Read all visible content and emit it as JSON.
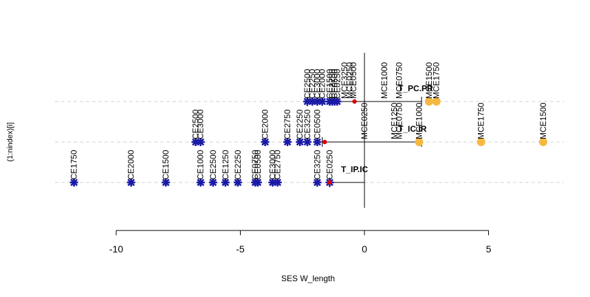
{
  "chart_data": {
    "type": "scatter",
    "xlabel": "SES W_length",
    "ylabel": "(1:nindex)[i]",
    "xlim": [
      -10,
      8
    ],
    "x_ticks": [
      -10,
      -5,
      0,
      5
    ],
    "x_tick_labels": [
      "-10",
      "-5",
      "0",
      "5"
    ],
    "grid": false,
    "colors": {
      "star": "#1a1aa6",
      "highlight": "#f5b942",
      "mean": "#dd0000",
      "guide": "#d0d0d0"
    },
    "rows": [
      {
        "label": "T_IP.IC",
        "index": 1,
        "mean": -1.4,
        "interval": [
          -1.4,
          0
        ],
        "points": [
          {
            "label": "CE1750",
            "x": -11.7,
            "kind": "star"
          },
          {
            "label": "CE2000",
            "x": -9.4,
            "kind": "star"
          },
          {
            "label": "CE1500",
            "x": -8.0,
            "kind": "star"
          },
          {
            "label": "CE1000",
            "x": -6.6,
            "kind": "star"
          },
          {
            "label": "CE2500",
            "x": -6.1,
            "kind": "star"
          },
          {
            "label": "CE1250",
            "x": -5.6,
            "kind": "star"
          },
          {
            "label": "CE2250",
            "x": -5.1,
            "kind": "star"
          },
          {
            "label": "CE0750",
            "x": -4.4,
            "kind": "star"
          },
          {
            "label": "CE0500",
            "x": -4.3,
            "kind": "star"
          },
          {
            "label": "CE3000",
            "x": -3.7,
            "kind": "star"
          },
          {
            "label": "CE2750",
            "x": -3.5,
            "kind": "star"
          },
          {
            "label": "CE3250",
            "x": -1.9,
            "kind": "star"
          },
          {
            "label": "CE0250",
            "x": -1.4,
            "kind": "star"
          }
        ]
      },
      {
        "label": "T_IC.IR",
        "index": 2,
        "mean": -1.6,
        "interval": [
          -1.7,
          2.3
        ],
        "points": [
          {
            "label": "CE2500",
            "x": -6.8,
            "kind": "star"
          },
          {
            "label": "CE3000",
            "x": -6.6,
            "kind": "star"
          },
          {
            "label": "CE2000",
            "x": -4.0,
            "kind": "star"
          },
          {
            "label": "CE2750",
            "x": -3.1,
            "kind": "star"
          },
          {
            "label": "CE2250",
            "x": -2.6,
            "kind": "star"
          },
          {
            "label": "CE3250",
            "x": -2.3,
            "kind": "star"
          },
          {
            "label": "CE0500",
            "x": -1.9,
            "kind": "star"
          },
          {
            "label": "MCE0250",
            "x": 0,
            "kind": "label"
          },
          {
            "label": "MCE1250",
            "x": 1.2,
            "kind": "label"
          },
          {
            "label": "MCE0750",
            "x": 1.4,
            "kind": "label"
          },
          {
            "label": "MCE1000",
            "x": 2.2,
            "kind": "highlight"
          },
          {
            "label": "MCE1750",
            "x": 4.7,
            "kind": "highlight"
          },
          {
            "label": "MCE1500",
            "x": 7.2,
            "kind": "highlight"
          }
        ]
      },
      {
        "label": "T_PC.PR",
        "index": 3,
        "mean": -0.4,
        "interval": [
          -2.3,
          2.3
        ],
        "points": [
          {
            "label": "CE2500",
            "x": -2.3,
            "kind": "star"
          },
          {
            "label": "CE2250",
            "x": -2.1,
            "kind": "star"
          },
          {
            "label": "CE3000",
            "x": -1.9,
            "kind": "star"
          },
          {
            "label": "CE2000",
            "x": -1.7,
            "kind": "star"
          },
          {
            "label": "CE1500",
            "x": -1.4,
            "kind": "star"
          },
          {
            "label": "CE2750",
            "x": -1.3,
            "kind": "star"
          },
          {
            "label": "CE0500",
            "x": -1.2,
            "kind": "star"
          },
          {
            "label": "CE0250",
            "x": -1.1,
            "kind": "star"
          },
          {
            "label": "MCE3250",
            "x": -0.8,
            "kind": "label"
          },
          {
            "label": "MCE0250",
            "x": -0.6,
            "kind": "label"
          },
          {
            "label": "MCE0500",
            "x": -0.45,
            "kind": "label"
          },
          {
            "label": "MCE1000",
            "x": 0.8,
            "kind": "label"
          },
          {
            "label": "MCE0750",
            "x": 1.4,
            "kind": "label"
          },
          {
            "label": "MCE1500",
            "x": 2.6,
            "kind": "highlight"
          },
          {
            "label": "MCE1750",
            "x": 2.9,
            "kind": "highlight"
          }
        ]
      }
    ]
  }
}
